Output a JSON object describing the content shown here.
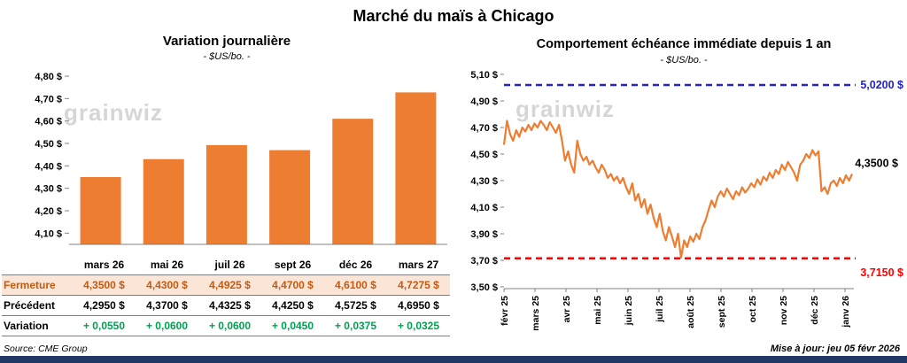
{
  "title": "Marché du maïs à Chicago",
  "watermark": "grainwiz",
  "source": "Source: CME Group",
  "updated": "Mise à jour: jeu 05 févr 2026",
  "colors": {
    "orange": "#ed7d31",
    "blue": "#2222cc",
    "red": "#ff0000",
    "green": "#00a050",
    "navy": "#1f3864",
    "fermeture_bg": "#fbe5d6",
    "fermeture_text": "#c55a11",
    "axis": "#808080"
  },
  "chart_data": [
    {
      "type": "bar",
      "title": "Variation journalière",
      "subtitle": "- $US/bo. -",
      "categories": [
        "mars 26",
        "mai 26",
        "juil 26",
        "sept 26",
        "déc 26",
        "mars 27"
      ],
      "values": [
        4.35,
        4.43,
        4.4925,
        4.47,
        4.61,
        4.7275
      ],
      "ylim": [
        4.05,
        4.8
      ],
      "yticks": [
        {
          "value": 4.8,
          "label": "4,80 $"
        },
        {
          "value": 4.7,
          "label": "4,70 $"
        },
        {
          "value": 4.6,
          "label": "4,60 $"
        },
        {
          "value": 4.5,
          "label": "4,50 $"
        },
        {
          "value": 4.4,
          "label": "4,40 $"
        },
        {
          "value": 4.3,
          "label": "4,30 $"
        },
        {
          "value": 4.2,
          "label": "4,20 $"
        },
        {
          "value": 4.1,
          "label": "4,10 $"
        }
      ],
      "legend": "none",
      "grid": false
    },
    {
      "type": "line",
      "title": "Comportement échéance immédiate depuis 1 an",
      "subtitle": "- $US/bo. -",
      "x_labels": [
        "févr 25",
        "mars 25",
        "avr 25",
        "mai 25",
        "juin 25",
        "juil 25",
        "août 25",
        "sept 25",
        "oct 25",
        "nov 25",
        "déc 25",
        "janv 26"
      ],
      "ylim": [
        3.5,
        5.1
      ],
      "yticks": [
        {
          "value": 5.1,
          "label": "5,10 $"
        },
        {
          "value": 4.9,
          "label": "4,90 $"
        },
        {
          "value": 4.7,
          "label": "4,70 $"
        },
        {
          "value": 4.5,
          "label": "4,50 $"
        },
        {
          "value": 4.3,
          "label": "4,30 $"
        },
        {
          "value": 4.1,
          "label": "4,10 $"
        },
        {
          "value": 3.9,
          "label": "3,90 $"
        },
        {
          "value": 3.7,
          "label": "3,70 $"
        },
        {
          "value": 3.5,
          "label": "3,50 $"
        }
      ],
      "hlines": [
        {
          "value": 5.02,
          "label": "5,0200 $",
          "color": "#2222cc",
          "style": "dashed"
        },
        {
          "value": 3.715,
          "label": "3,7150 $",
          "color": "#ff0000",
          "style": "dashed"
        }
      ],
      "last_value_label": "4,3500 $",
      "values": [
        4.57,
        4.75,
        4.65,
        4.6,
        4.68,
        4.63,
        4.7,
        4.67,
        4.72,
        4.68,
        4.73,
        4.7,
        4.75,
        4.72,
        4.68,
        4.74,
        4.7,
        4.66,
        4.72,
        4.6,
        4.45,
        4.52,
        4.42,
        4.36,
        4.6,
        4.5,
        4.45,
        4.48,
        4.42,
        4.45,
        4.4,
        4.36,
        4.42,
        4.38,
        4.32,
        4.35,
        4.3,
        4.33,
        4.28,
        4.32,
        4.25,
        4.2,
        4.28,
        4.15,
        4.2,
        4.1,
        4.16,
        4.05,
        4.12,
        4.02,
        3.95,
        4.05,
        3.92,
        3.85,
        3.95,
        3.88,
        3.8,
        3.9,
        3.72,
        3.85,
        3.8,
        3.88,
        3.84,
        3.9,
        3.86,
        3.95,
        4.0,
        4.08,
        4.15,
        4.1,
        4.18,
        4.22,
        4.18,
        4.24,
        4.2,
        4.16,
        4.22,
        4.19,
        4.25,
        4.21,
        4.24,
        4.28,
        4.25,
        4.31,
        4.27,
        4.33,
        4.3,
        4.36,
        4.32,
        4.38,
        4.35,
        4.42,
        4.38,
        4.44,
        4.4,
        4.36,
        4.3,
        4.42,
        4.45,
        4.5,
        4.47,
        4.53,
        4.49,
        4.52,
        4.22,
        4.25,
        4.2,
        4.28,
        4.3,
        4.26,
        4.32,
        4.28,
        4.34,
        4.3,
        4.35
      ],
      "grid": false
    }
  ],
  "table": {
    "rows": [
      {
        "label": "Fermeture",
        "values": [
          "4,3500  $",
          "4,4300  $",
          "4,4925  $",
          "4,4700  $",
          "4,6100  $",
          "4,7275  $"
        ]
      },
      {
        "label": "Précédent",
        "values": [
          "4,2950  $",
          "4,3700  $",
          "4,4325  $",
          "4,4250  $",
          "4,5725  $",
          "4,6950  $"
        ]
      },
      {
        "label": "Variation",
        "values": [
          "+ 0,0550",
          "+ 0,0600",
          "+ 0,0600",
          "+ 0,0450",
          "+ 0,0375",
          "+ 0,0325"
        ]
      }
    ]
  }
}
